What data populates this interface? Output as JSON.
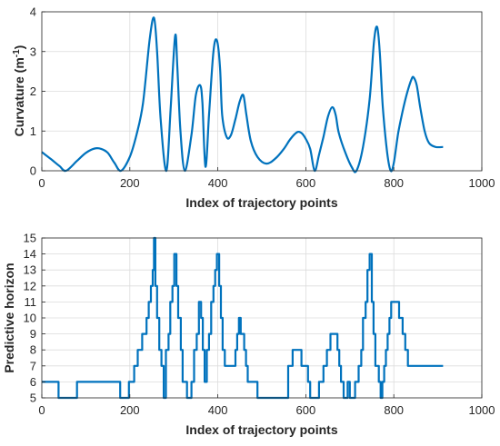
{
  "chart_data": [
    {
      "type": "line",
      "title": "",
      "xlabel": "Index of trajectory points",
      "ylabel": "Curvature (m",
      "ylabel_sup": "-1",
      "ylabel_close": ")",
      "xlim": [
        0,
        1000
      ],
      "ylim": [
        0,
        4
      ],
      "xticks": [
        0,
        200,
        400,
        600,
        800,
        1000
      ],
      "yticks": [
        0,
        1,
        2,
        3,
        4
      ],
      "xtick_labels": [
        "0",
        "200",
        "400",
        "600",
        "800",
        "1000"
      ],
      "ytick_labels": [
        "0",
        "1",
        "2",
        "3",
        "4"
      ],
      "grid": true,
      "line_color": "#0072BD",
      "series": [
        {
          "x": [
            0,
            20,
            40,
            55,
            80,
            100,
            120,
            135,
            150,
            165,
            180,
            200,
            215,
            230,
            245,
            255,
            262,
            270,
            283,
            293,
            303,
            308,
            315,
            325,
            340,
            350,
            360,
            365,
            372,
            380,
            390,
            398,
            405,
            410,
            420,
            430,
            440,
            450,
            458,
            465,
            475,
            490,
            510,
            530,
            550,
            565,
            580,
            590,
            600,
            610,
            620,
            630,
            640,
            650,
            660,
            668,
            675,
            690,
            705,
            715,
            730,
            745,
            755,
            762,
            768,
            775,
            785,
            793,
            800,
            810,
            820,
            830,
            840,
            845,
            852,
            860,
            870,
            880,
            895,
            912
          ],
          "y": [
            0.47,
            0.3,
            0.12,
            0.0,
            0.25,
            0.45,
            0.56,
            0.55,
            0.45,
            0.2,
            0.0,
            0.35,
            0.9,
            1.7,
            3.3,
            3.85,
            3.0,
            1.3,
            0.0,
            1.6,
            3.4,
            2.6,
            1.0,
            0.0,
            0.9,
            1.9,
            2.15,
            1.7,
            0.1,
            1.4,
            3.0,
            3.28,
            2.6,
            1.4,
            0.85,
            0.9,
            1.3,
            1.75,
            1.9,
            1.4,
            0.75,
            0.35,
            0.18,
            0.3,
            0.55,
            0.8,
            0.97,
            0.95,
            0.8,
            0.55,
            0.0,
            0.4,
            0.85,
            1.35,
            1.6,
            1.4,
            0.95,
            0.45,
            0.08,
            0.0,
            0.6,
            1.8,
            3.25,
            3.62,
            3.0,
            1.6,
            0.45,
            0.0,
            0.2,
            0.95,
            1.5,
            1.95,
            2.3,
            2.35,
            2.15,
            1.6,
            1.0,
            0.7,
            0.6,
            0.6
          ]
        }
      ]
    },
    {
      "type": "line",
      "title": "",
      "xlabel": "Index of trajectory points",
      "ylabel": "Predictive horizon",
      "xlim": [
        0,
        1000
      ],
      "ylim": [
        5,
        15
      ],
      "xticks": [
        0,
        200,
        400,
        600,
        800,
        1000
      ],
      "yticks": [
        5,
        6,
        7,
        8,
        9,
        10,
        11,
        12,
        13,
        14,
        15
      ],
      "xtick_labels": [
        "0",
        "200",
        "400",
        "600",
        "800",
        "1000"
      ],
      "ytick_labels": [
        "5",
        "6",
        "7",
        "8",
        "9",
        "10",
        "11",
        "12",
        "13",
        "14",
        "15"
      ],
      "grid": true,
      "step": true,
      "line_color": "#0072BD",
      "series": [
        {
          "x": [
            0,
            38,
            80,
            178,
            198,
            210,
            218,
            228,
            238,
            243,
            248,
            252,
            255,
            258,
            262,
            267,
            272,
            277,
            282,
            288,
            292,
            297,
            301,
            306,
            310,
            316,
            320,
            330,
            340,
            346,
            352,
            357,
            362,
            366,
            370,
            375,
            380,
            385,
            390,
            394,
            398,
            403,
            407,
            411,
            416,
            420,
            440,
            444,
            448,
            452,
            460,
            464,
            468,
            472,
            490,
            560,
            570,
            590,
            605,
            610,
            630,
            640,
            648,
            656,
            672,
            676,
            680,
            686,
            695,
            700,
            712,
            720,
            726,
            730,
            736,
            740,
            745,
            750,
            754,
            758,
            766,
            770,
            774,
            778,
            782,
            786,
            790,
            794,
            800,
            812,
            820,
            826,
            832,
            838,
            856,
            860,
            864,
            868,
            872,
            878
          ],
          "y": [
            6,
            5,
            6,
            5,
            6,
            7,
            8,
            9,
            10,
            11,
            12,
            13,
            15,
            12,
            10,
            8,
            7,
            5,
            8,
            9,
            11,
            12,
            14,
            12,
            10,
            8,
            6,
            5,
            6,
            8,
            9,
            11,
            10,
            8,
            6,
            8,
            9,
            11,
            12,
            13,
            14,
            12,
            10,
            8,
            7,
            7,
            8,
            9,
            10,
            9,
            8,
            7,
            6,
            6,
            5,
            7,
            8,
            7,
            6,
            5,
            6,
            7,
            8,
            9,
            8,
            7,
            6,
            5,
            6,
            5,
            6,
            7,
            8,
            10,
            11,
            13,
            14,
            11,
            9,
            7,
            6,
            5,
            6,
            7,
            8,
            9,
            10,
            11,
            11,
            10,
            9,
            8,
            7,
            7,
            7,
            7,
            7,
            7,
            7,
            7
          ]
        }
      ]
    }
  ]
}
